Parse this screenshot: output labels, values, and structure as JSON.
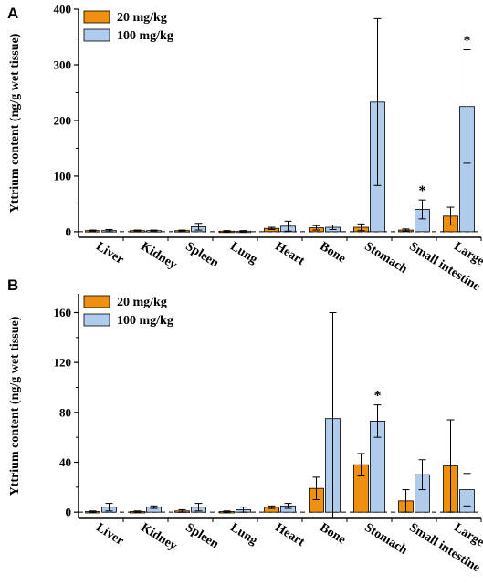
{
  "chart_data": [
    {
      "type": "bar",
      "panel": "A",
      "ylabel": "Yttrium content (ng/g wet tissue)",
      "ylim": [
        -10,
        400
      ],
      "yticks": [
        0,
        100,
        200,
        300,
        400
      ],
      "categories": [
        "Liver",
        "Kidney",
        "Spleen",
        "Lung",
        "Heart",
        "Bone",
        "Stomach",
        "Small intestine",
        "Large intestine"
      ],
      "series": [
        {
          "name": "20 mg/kg",
          "color": "#F0900F",
          "values": [
            2,
            2,
            2,
            1,
            6,
            7,
            8,
            3,
            28
          ],
          "errors": [
            1,
            1,
            1,
            1,
            2,
            4,
            6,
            2,
            16
          ]
        },
        {
          "name": "100 mg/kg",
          "color": "#B0CCEC",
          "values": [
            2,
            2,
            9,
            1,
            10,
            8,
            233,
            40,
            225
          ],
          "errors": [
            2,
            1,
            6,
            1,
            9,
            4,
            150,
            17,
            102
          ]
        }
      ],
      "annotations": [
        {
          "category": "Small intestine",
          "series": "100 mg/kg",
          "text": "*"
        },
        {
          "category": "Large intestine",
          "series": "100 mg/kg",
          "text": "*"
        }
      ],
      "reference_line": 0,
      "legend": "top-left"
    },
    {
      "type": "bar",
      "panel": "B",
      "ylabel": "Yttrium content (ng/g wet tissue)",
      "ylim": [
        -5,
        175
      ],
      "yticks": [
        0,
        40,
        80,
        120,
        160
      ],
      "categories": [
        "Liver",
        "Kidney",
        "Spleen",
        "Lung",
        "Heart",
        "Bone",
        "Stomach",
        "Small intestine",
        "Large intestine"
      ],
      "series": [
        {
          "name": "20 mg/kg",
          "color": "#F0900F",
          "values": [
            0.5,
            0.5,
            1,
            0.5,
            4,
            19,
            38,
            9,
            37
          ],
          "errors": [
            0.5,
            0.5,
            1,
            0.5,
            1,
            9,
            9,
            9,
            37
          ]
        },
        {
          "name": "100 mg/kg",
          "color": "#B0CCEC",
          "values": [
            4,
            4,
            4,
            2,
            5,
            75,
            73,
            30,
            18
          ],
          "errors": [
            3,
            1,
            3,
            2,
            2,
            85,
            13,
            12,
            13
          ]
        }
      ],
      "annotations": [
        {
          "category": "Stomach",
          "series": "100 mg/kg",
          "text": "*"
        }
      ],
      "reference_line": 0,
      "legend": "top-left"
    }
  ]
}
